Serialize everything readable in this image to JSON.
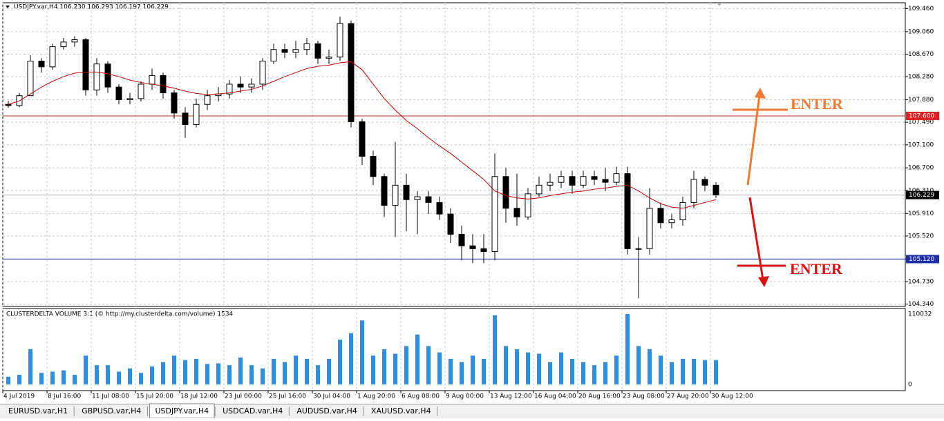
{
  "window": {
    "tabs": [
      {
        "label": "EURUSD.var,H1",
        "active": false
      },
      {
        "label": "GBPUSD.var,H4",
        "active": false
      },
      {
        "label": "USDJPY.var,H4",
        "active": true
      },
      {
        "label": "USDCAD.var,H4",
        "active": false
      },
      {
        "label": "AUDUSD.var,H4",
        "active": false
      },
      {
        "label": "XAUUSD.var,H4",
        "active": false
      }
    ]
  },
  "chart_data": [
    {
      "type": "candlestick",
      "title": "USDJPY.var,H4  106.230 106.293 106.197 106.229",
      "categories": [
        "4 Jul 2019",
        null,
        null,
        null,
        "8 Jul 16:00",
        null,
        null,
        null,
        "11 Jul 08:00",
        null,
        null,
        null,
        "15 Jul 20:00",
        null,
        null,
        null,
        "18 Jul 12:00",
        null,
        null,
        null,
        "23 Jul 00:00",
        null,
        null,
        null,
        "25 Jul 16:00",
        null,
        null,
        null,
        "30 Jul 04:00",
        null,
        null,
        null,
        "1 Aug 20:00",
        null,
        null,
        null,
        "6 Aug 08:00",
        null,
        null,
        null,
        "9 Aug 00:00",
        null,
        null,
        null,
        "13 Aug 12:00",
        null,
        null,
        null,
        "16 Aug 04:00",
        null,
        null,
        null,
        "20 Aug 16:00",
        null,
        null,
        null,
        "23 Aug 08:00",
        null,
        null,
        null,
        "27 Aug 20:00",
        null,
        null,
        null,
        "30 Aug 12:00"
      ],
      "open": [
        107.8,
        107.78,
        107.95,
        108.55,
        108.45,
        108.8,
        108.88,
        108.92,
        108.05,
        108.5,
        108.1,
        107.88,
        107.9,
        108.15,
        108.3,
        108.0,
        107.65,
        107.45,
        107.8,
        107.95,
        107.98,
        108.15,
        108.1,
        108.15,
        108.55,
        108.75,
        108.7,
        108.75,
        108.85,
        108.6,
        108.62,
        109.2,
        107.5,
        106.9,
        106.55,
        106.05,
        106.4,
        106.15,
        106.2,
        106.1,
        105.9,
        105.55,
        105.35,
        105.3,
        105.25,
        106.55,
        106.0,
        105.85,
        106.25,
        106.4,
        106.45,
        106.55,
        106.4,
        106.55,
        106.5,
        106.45,
        106.6,
        105.3,
        105.3,
        106.0,
        105.75,
        105.8,
        106.1,
        106.5,
        106.4
      ],
      "high": [
        107.86,
        108.0,
        108.65,
        108.6,
        108.85,
        108.95,
        108.98,
        108.95,
        108.6,
        108.55,
        108.15,
        108.0,
        108.2,
        108.42,
        108.35,
        108.05,
        107.75,
        107.9,
        108.05,
        108.1,
        108.22,
        108.28,
        108.25,
        108.6,
        108.85,
        108.85,
        108.9,
        108.95,
        108.9,
        108.75,
        109.32,
        109.25,
        107.55,
        107.0,
        106.6,
        107.15,
        106.6,
        106.3,
        106.3,
        106.2,
        106.0,
        105.7,
        105.55,
        105.55,
        106.95,
        106.7,
        106.6,
        106.35,
        106.55,
        106.6,
        106.65,
        106.65,
        106.65,
        106.65,
        106.7,
        106.72,
        106.72,
        105.5,
        106.35,
        106.1,
        105.9,
        106.2,
        106.65,
        106.55,
        106.45
      ],
      "low": [
        107.74,
        107.75,
        107.95,
        108.35,
        108.4,
        108.75,
        108.8,
        107.95,
        107.95,
        108.0,
        107.8,
        107.8,
        107.85,
        108.05,
        107.9,
        107.55,
        107.22,
        107.4,
        107.7,
        107.85,
        107.9,
        108.0,
        108.0,
        108.05,
        108.5,
        108.6,
        108.6,
        108.65,
        108.5,
        108.5,
        108.55,
        107.4,
        106.75,
        106.4,
        105.85,
        105.5,
        105.6,
        105.55,
        105.9,
        105.8,
        105.4,
        105.1,
        105.05,
        105.05,
        105.1,
        105.75,
        105.7,
        105.8,
        106.2,
        106.3,
        106.35,
        106.25,
        106.35,
        106.4,
        106.3,
        106.4,
        105.2,
        104.44,
        105.2,
        105.65,
        105.65,
        105.7,
        106.0,
        106.3,
        106.18
      ],
      "close": [
        107.78,
        107.95,
        108.55,
        108.45,
        108.8,
        108.88,
        108.92,
        108.05,
        108.5,
        108.1,
        107.88,
        107.9,
        108.15,
        108.3,
        108.0,
        107.65,
        107.45,
        107.8,
        107.95,
        107.98,
        108.15,
        108.1,
        108.15,
        108.55,
        108.75,
        108.7,
        108.75,
        108.85,
        108.6,
        108.62,
        109.2,
        107.5,
        106.9,
        106.55,
        106.05,
        106.4,
        106.15,
        106.2,
        106.1,
        105.9,
        105.55,
        105.35,
        105.3,
        105.25,
        106.55,
        106.0,
        105.85,
        106.25,
        106.4,
        106.45,
        106.55,
        106.4,
        106.55,
        106.5,
        106.45,
        106.6,
        105.3,
        105.3,
        106.0,
        105.75,
        105.8,
        106.1,
        106.5,
        106.4,
        106.23
      ],
      "up_color": "#ffffff",
      "down_color": "#000000",
      "moving_average": {
        "color": "#c00000",
        "values": [
          107.8,
          107.86,
          107.98,
          108.1,
          108.2,
          108.28,
          108.34,
          108.36,
          108.36,
          108.33,
          108.28,
          108.22,
          108.18,
          108.15,
          108.12,
          108.08,
          108.03,
          107.99,
          107.97,
          107.98,
          108.0,
          108.03,
          108.06,
          108.12,
          108.2,
          108.28,
          108.35,
          108.42,
          108.46,
          108.48,
          108.52,
          108.54,
          108.4,
          108.15,
          107.9,
          107.7,
          107.52,
          107.38,
          107.22,
          107.08,
          106.95,
          106.8,
          106.65,
          106.5,
          106.3,
          106.22,
          106.18,
          106.16,
          106.18,
          106.22,
          106.25,
          106.28,
          106.3,
          106.33,
          106.35,
          106.38,
          106.4,
          106.3,
          106.18,
          106.08,
          106.02,
          106.0,
          106.05,
          106.1,
          106.15
        ]
      },
      "hlines": [
        {
          "value": 107.6,
          "label": "107.600",
          "color": "#e02020"
        },
        {
          "value": 105.12,
          "label": "105.120",
          "color": "#1c2fa8"
        },
        {
          "value": 106.229,
          "label": "106.229",
          "color": "#000000"
        }
      ],
      "annotations": [
        {
          "text": "ENTER",
          "color": "#f07a30"
        },
        {
          "text": "ENTER",
          "color": "#e01010"
        }
      ],
      "ylim": [
        104.3,
        109.56
      ],
      "yticks": [
        {
          "value": 109.46,
          "label": "109.460"
        },
        {
          "value": 109.06,
          "label": "109.060"
        },
        {
          "value": 108.67,
          "label": "108.670"
        },
        {
          "value": 108.28,
          "label": "108.280"
        },
        {
          "value": 107.88,
          "label": "107.880"
        },
        {
          "value": 107.49,
          "label": "107.490"
        },
        {
          "value": 107.1,
          "label": "107.100"
        },
        {
          "value": 106.7,
          "label": "106.700"
        },
        {
          "value": 106.31,
          "label": "106.310"
        },
        {
          "value": 105.91,
          "label": "105.910"
        },
        {
          "value": 105.52,
          "label": "105.520"
        },
        {
          "value": 105.12,
          "label": "105.120"
        },
        {
          "value": 104.73,
          "label": "104.730"
        },
        {
          "value": 104.34,
          "label": "104.340"
        }
      ],
      "grid": true
    },
    {
      "type": "bar",
      "title": "CLUSTERDELTA VOLUME 3:1 (© http://my.clusterdelta.com/volume) 1534",
      "color": "#2f8de4",
      "values": [
        12000,
        15000,
        55000,
        18000,
        20000,
        22000,
        15000,
        45000,
        30000,
        30000,
        20000,
        25000,
        18000,
        28000,
        35000,
        45000,
        38000,
        40000,
        32000,
        33000,
        30000,
        42000,
        30000,
        25000,
        40000,
        35000,
        45000,
        40000,
        30000,
        40000,
        70000,
        80000,
        100000,
        45000,
        55000,
        48000,
        60000,
        78000,
        60000,
        50000,
        40000,
        35000,
        45000,
        40000,
        108000,
        60000,
        55000,
        50000,
        48000,
        35000,
        50000,
        40000,
        35000,
        30000,
        35000,
        45000,
        110000,
        60000,
        55000,
        45000,
        35000,
        40000,
        40000,
        38000,
        38000
      ],
      "ylim": [
        0,
        110032
      ],
      "yticks": [
        110032,
        0
      ]
    }
  ]
}
